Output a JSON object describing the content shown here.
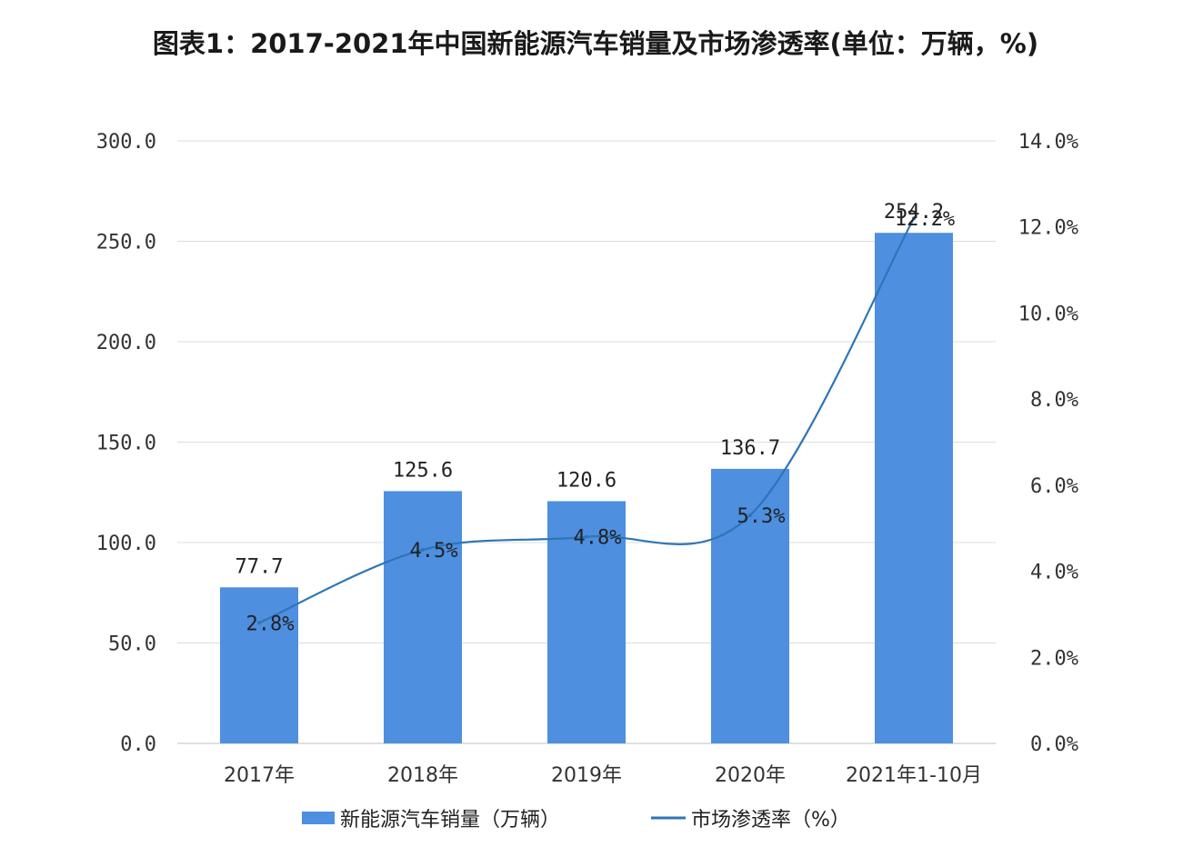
{
  "chart_data": {
    "type": "bar",
    "title": "图表1：2017-2021年中国新能源汽车销量及市场渗透率(单位：万辆，%)",
    "categories": [
      "2017年",
      "2018年",
      "2019年",
      "2020年",
      "2021年1-10月"
    ],
    "series": [
      {
        "name": "新能源汽车销量（万辆）",
        "type": "bar",
        "axis": "left",
        "values": [
          77.7,
          125.6,
          120.6,
          136.7,
          254.2
        ],
        "labels": [
          "77.7",
          "125.6",
          "120.6",
          "136.7",
          "254.2"
        ],
        "color": "#4e8fe0"
      },
      {
        "name": "市场渗透率（%）",
        "type": "line",
        "axis": "right",
        "values": [
          2.8,
          4.5,
          4.8,
          5.3,
          12.2
        ],
        "labels": [
          "2.8%",
          "4.5%",
          "4.8%",
          "5.3%",
          "12.2%"
        ],
        "color": "#2e75b6"
      }
    ],
    "y_left": {
      "lim": [
        0,
        300
      ],
      "ticks": [
        "0.0",
        "50.0",
        "100.0",
        "150.0",
        "200.0",
        "250.0",
        "300.0"
      ]
    },
    "y_right": {
      "lim": [
        0,
        14
      ],
      "ticks": [
        "0.0%",
        "2.0%",
        "4.0%",
        "6.0%",
        "8.0%",
        "10.0%",
        "12.0%",
        "14.0%"
      ]
    },
    "grid": true,
    "legend": "bottom"
  }
}
